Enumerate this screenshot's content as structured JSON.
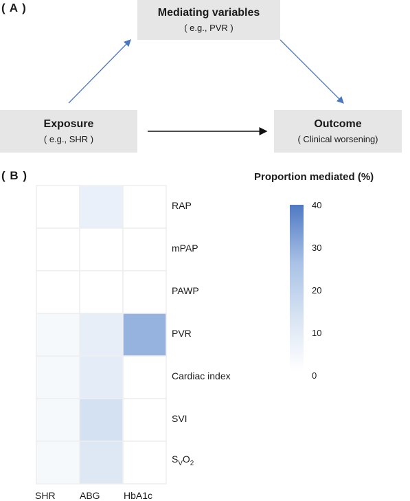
{
  "panel_a": {
    "label": "( A )",
    "mediator": {
      "title": "Mediating variables",
      "sub": "( e.g., PVR )"
    },
    "exposure": {
      "title": "Exposure",
      "sub": "( e.g., SHR )"
    },
    "outcome": {
      "title": "Outcome",
      "sub": "( Clinical worsening)"
    },
    "arrow_colors": {
      "blue": "#4a78c0",
      "black": "#111111"
    }
  },
  "panel_b": {
    "label": "( B )",
    "legend": {
      "title": "Proportion mediated (%)",
      "ticks": [
        "40",
        "30",
        "20",
        "10",
        "0"
      ]
    },
    "svo2": {
      "base": "S",
      "sub1": "V",
      "mid": "O",
      "sub2": "2"
    }
  },
  "chart_data": {
    "type": "heatmap",
    "x_labels": [
      "SHR",
      "ABG",
      "HbA1c"
    ],
    "y_labels": [
      "RAP",
      "mPAP",
      "PAWP",
      "PVR",
      "Cardiac index",
      "SVI",
      "SvO2"
    ],
    "values": [
      [
        0,
        7,
        0
      ],
      [
        0,
        0,
        0
      ],
      [
        0,
        0,
        0
      ],
      [
        3,
        8,
        29
      ],
      [
        3,
        9,
        0
      ],
      [
        3,
        14,
        0
      ],
      [
        3,
        11,
        0
      ]
    ],
    "color_range": [
      0,
      40
    ],
    "colors": {
      "low": "#ffffff",
      "high": "#4f79c4",
      "grid": "#eeeeee"
    }
  }
}
